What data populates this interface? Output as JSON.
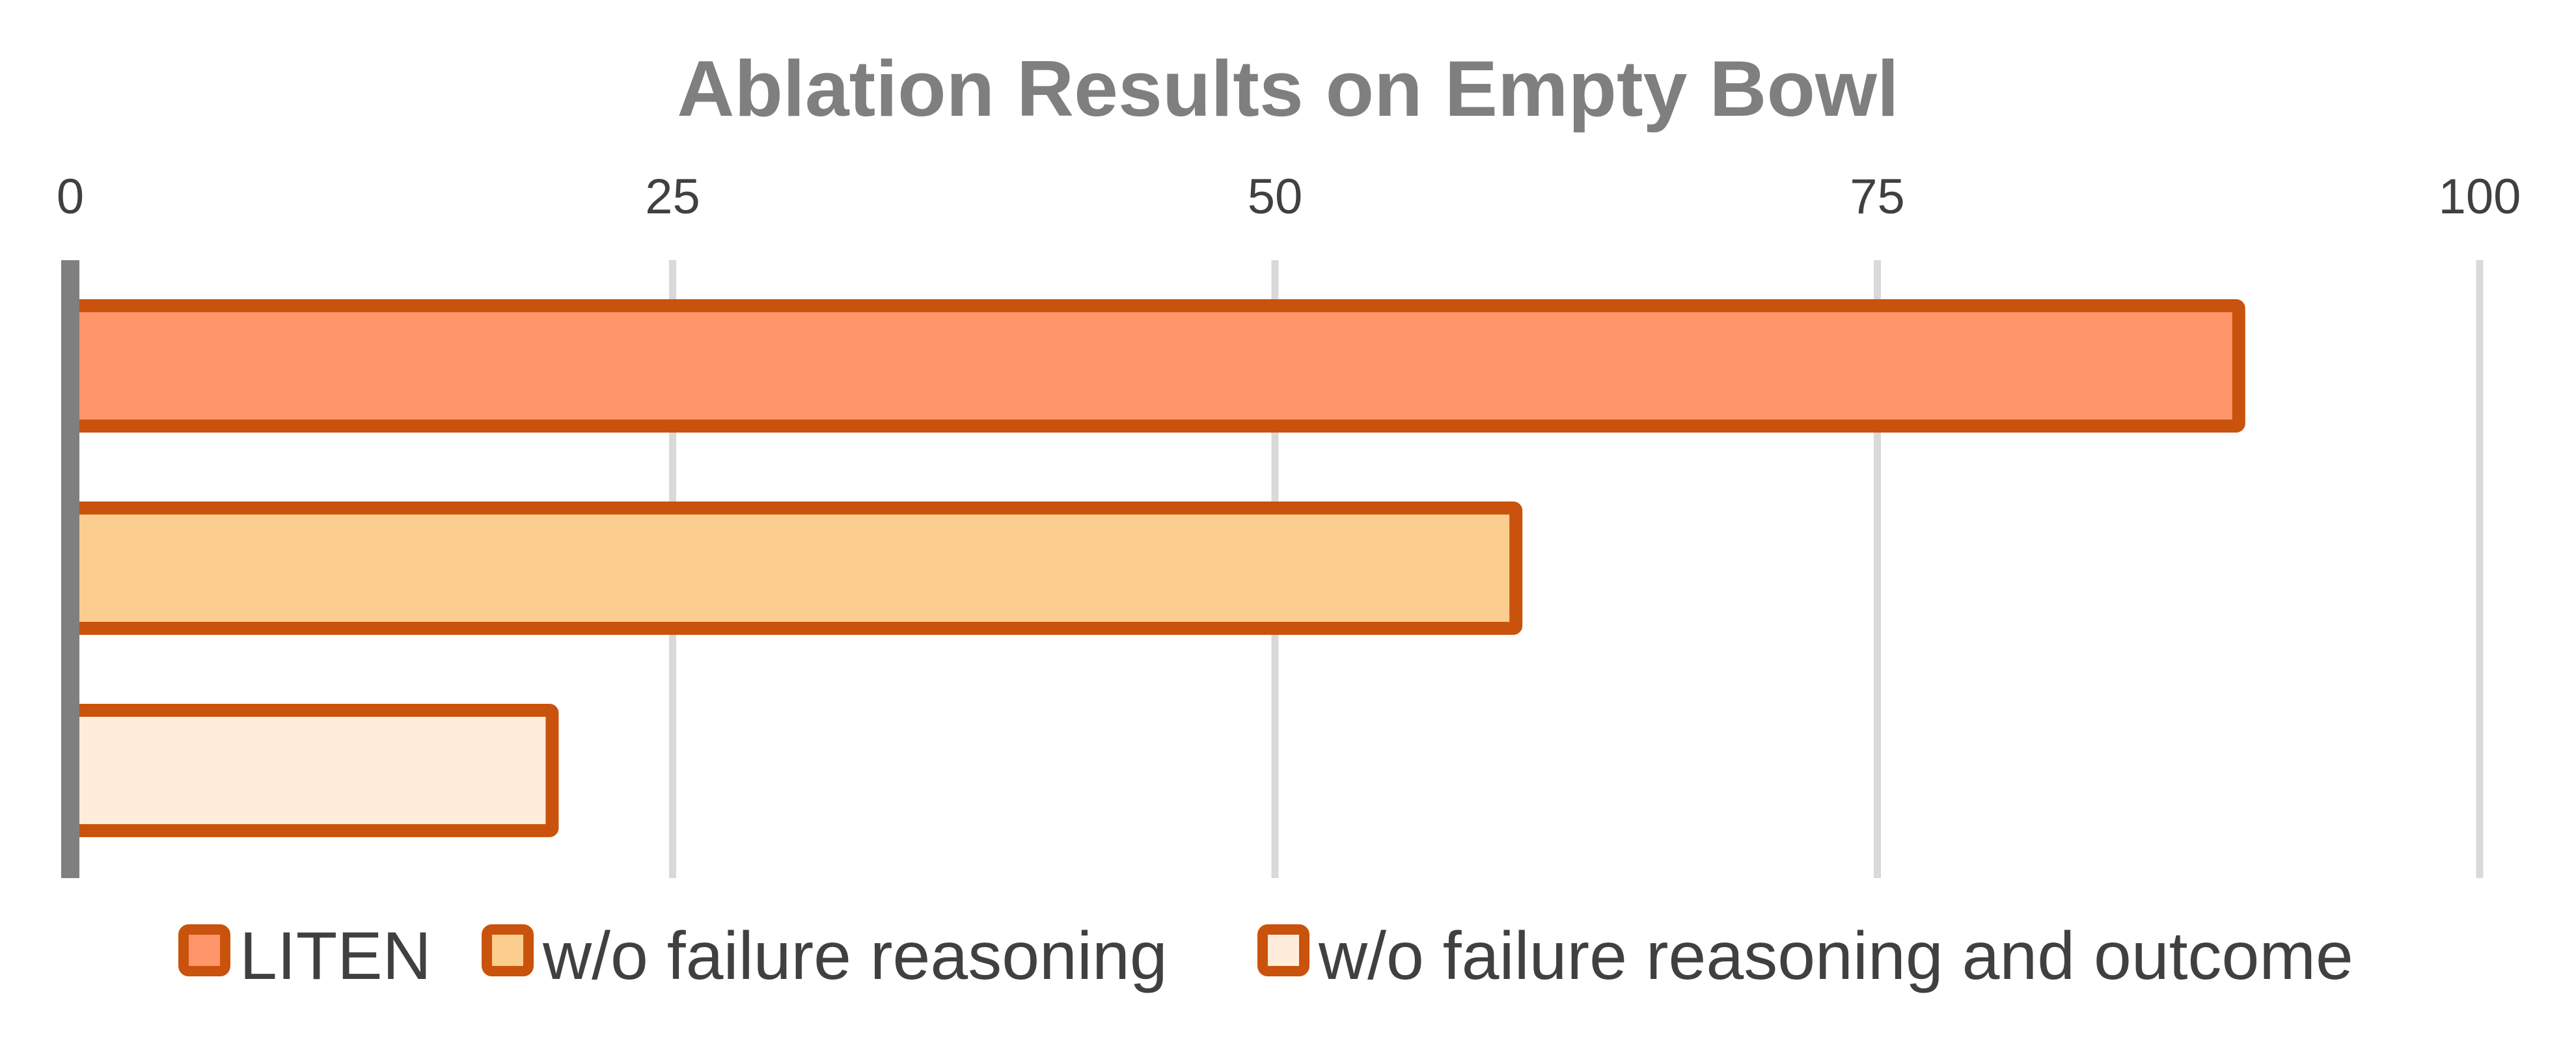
{
  "chart_data": {
    "type": "bar",
    "orientation": "horizontal",
    "title": "Ablation Results on Empty Bowl",
    "xlabel": "",
    "ylabel": "",
    "xlim": [
      0,
      100
    ],
    "x_ticks": [
      "0",
      "25",
      "50",
      "75",
      "100"
    ],
    "x_tick_position": "top",
    "grid": true,
    "legend_position": "bottom",
    "categories": [
      ""
    ],
    "series": [
      {
        "name": "LITEN",
        "values": [
          90
        ],
        "fill": "#ff956b",
        "stroke": "#c9530c"
      },
      {
        "name": "w/o failure reasoning",
        "values": [
          60
        ],
        "fill": "#fbcd8f",
        "stroke": "#c9530c"
      },
      {
        "name": "w/o failure reasoning and outcome",
        "values": [
          20
        ],
        "fill": "#feeddb",
        "stroke": "#c9530c"
      }
    ],
    "colors": {
      "title": "#7f7f7f",
      "text": "#404040",
      "gridline": "#d9d9d9",
      "axis": "#7f7f7f",
      "bar_outline": "#c9530c"
    }
  }
}
